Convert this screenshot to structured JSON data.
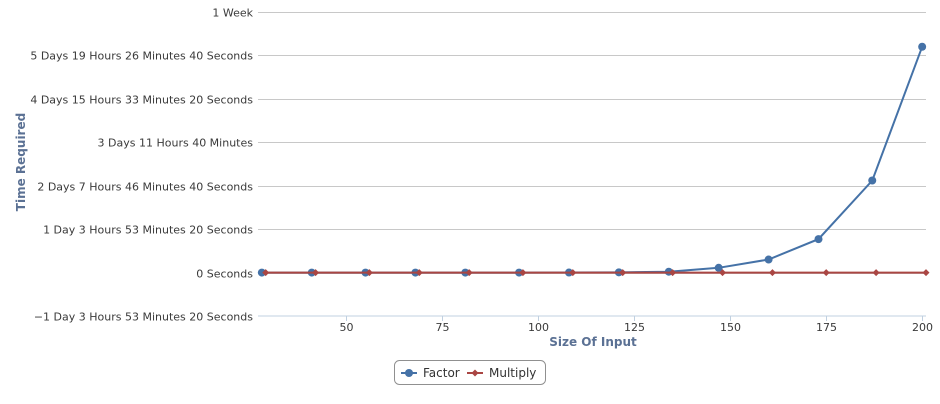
{
  "chart_data": {
    "type": "line",
    "xlabel": "Size Of Input",
    "ylabel": "Time Required",
    "xlim": [
      27,
      201
    ],
    "ylim": [
      -100000,
      600000
    ],
    "x_ticks": [
      50,
      75,
      100,
      125,
      150,
      175,
      200
    ],
    "y_ticks": [
      {
        "value": -100000,
        "label": "−1 Day 3 Hours 53 Minutes 20 Seconds"
      },
      {
        "value": 0,
        "label": "0 Seconds"
      },
      {
        "value": 100000,
        "label": "1 Day 3 Hours 53 Minutes 20 Seconds"
      },
      {
        "value": 200000,
        "label": "2 Days 7 Hours 46 Minutes 40 Seconds"
      },
      {
        "value": 300000,
        "label": "3 Days 11 Hours 40 Minutes"
      },
      {
        "value": 400000,
        "label": "4 Days 15 Hours 33 Minutes 20 Seconds"
      },
      {
        "value": 500000,
        "label": "5 Days 19 Hours 26 Minutes 40 Seconds"
      },
      {
        "value": 600000,
        "label": "1 Week"
      }
    ],
    "grid": true,
    "legend_position": "bottom-center",
    "series": [
      {
        "name": "Factor",
        "color": "#4572a7",
        "marker": "circle",
        "x": [
          28,
          41,
          55,
          68,
          81,
          95,
          108,
          121,
          134,
          147,
          160,
          173,
          187,
          200
        ],
        "y": [
          0,
          0,
          0,
          0,
          0,
          0,
          100,
          500,
          2000,
          11000,
          30000,
          77000,
          212000,
          520000
        ]
      },
      {
        "name": "Multiply",
        "color": "#aa4643",
        "marker": "diamond",
        "x": [
          29,
          42,
          56,
          69,
          82,
          96,
          109,
          122,
          135,
          148,
          161,
          175,
          188,
          201
        ],
        "y": [
          0,
          0,
          0,
          0,
          0,
          0,
          0,
          0,
          0,
          0,
          0,
          0,
          0,
          0
        ]
      }
    ]
  }
}
